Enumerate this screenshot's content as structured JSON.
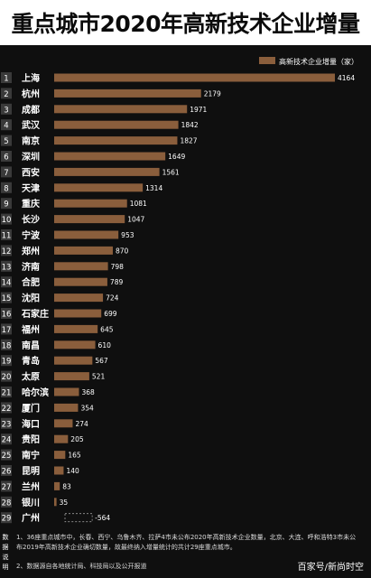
{
  "title": "重点城市2020年高新技术企业增量",
  "chart_data": {
    "type": "bar",
    "orientation": "horizontal",
    "legend": {
      "label": "高新技术企业增量（家）",
      "position": "top-right",
      "color": "#8a5e3c"
    },
    "bar_color": "#8a5e3c",
    "xlim": [
      0,
      4164
    ],
    "grid": false,
    "rows": [
      {
        "rank": "1",
        "city": "上海",
        "value": 4164,
        "label": "4164"
      },
      {
        "rank": "2",
        "city": "杭州",
        "value": 2179,
        "label": "2179"
      },
      {
        "rank": "3",
        "city": "成都",
        "value": 1971,
        "label": "1971"
      },
      {
        "rank": "4",
        "city": "武汉",
        "value": 1842,
        "label": "1842"
      },
      {
        "rank": "5",
        "city": "南京",
        "value": 1827,
        "label": "1827"
      },
      {
        "rank": "6",
        "city": "深圳",
        "value": 1649,
        "label": "1649"
      },
      {
        "rank": "7",
        "city": "西安",
        "value": 1561,
        "label": "1561"
      },
      {
        "rank": "8",
        "city": "天津",
        "value": 1314,
        "label": "1314"
      },
      {
        "rank": "9",
        "city": "重庆",
        "value": 1081,
        "label": "1081"
      },
      {
        "rank": "10",
        "city": "长沙",
        "value": 1047,
        "label": "1047"
      },
      {
        "rank": "11",
        "city": "宁波",
        "value": 953,
        "label": "953"
      },
      {
        "rank": "12",
        "city": "郑州",
        "value": 870,
        "label": "870"
      },
      {
        "rank": "13",
        "city": "济南",
        "value": 798,
        "label": "798"
      },
      {
        "rank": "14",
        "city": "合肥",
        "value": 789,
        "label": "789"
      },
      {
        "rank": "15",
        "city": "沈阳",
        "value": 724,
        "label": "724"
      },
      {
        "rank": "16",
        "city": "石家庄",
        "value": 699,
        "label": "699"
      },
      {
        "rank": "17",
        "city": "福州",
        "value": 645,
        "label": "645"
      },
      {
        "rank": "18",
        "city": "南昌",
        "value": 610,
        "label": "610"
      },
      {
        "rank": "19",
        "city": "青岛",
        "value": 567,
        "label": "567"
      },
      {
        "rank": "20",
        "city": "太原",
        "value": 521,
        "label": "521"
      },
      {
        "rank": "21",
        "city": "哈尔滨",
        "value": 368,
        "label": "368"
      },
      {
        "rank": "22",
        "city": "厦门",
        "value": 354,
        "label": "354"
      },
      {
        "rank": "23",
        "city": "海口",
        "value": 274,
        "label": "274"
      },
      {
        "rank": "24",
        "city": "贵阳",
        "value": 205,
        "label": "205"
      },
      {
        "rank": "25",
        "city": "南宁",
        "value": 165,
        "label": "165"
      },
      {
        "rank": "26",
        "city": "昆明",
        "value": 140,
        "label": "140"
      },
      {
        "rank": "27",
        "city": "兰州",
        "value": 83,
        "label": "83"
      },
      {
        "rank": "28",
        "city": "银川",
        "value": 35,
        "label": "35"
      },
      {
        "rank": "29",
        "city": "广州",
        "value": -564,
        "label": "-564"
      }
    ]
  },
  "notes": {
    "side_label": "数据说明",
    "note1": "1、36座重点城市中，长春、西宁、乌鲁木齐、拉萨4市未公布2020年高新技术企业数量，北京、大连、呼和浩特3市未公布2019年高新技术企业确切数量，故最终纳入增量统计的共计29座重点城市。",
    "note2": "2、数据源自各地统计局、科技局以及公开报道"
  },
  "credit": "百家号/新尚时空"
}
